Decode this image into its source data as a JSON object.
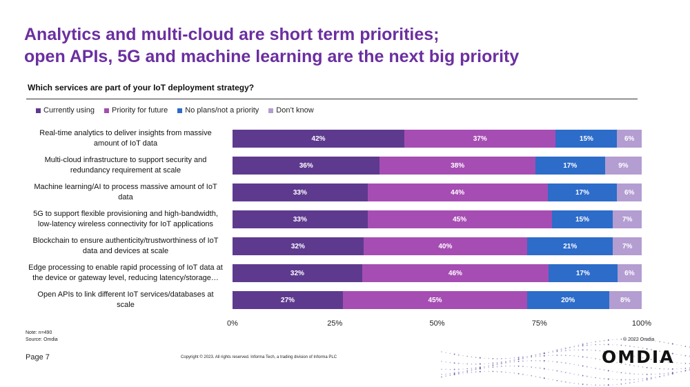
{
  "title_line1": "Analytics and multi-cloud are short term priorities;",
  "title_line2": "open APIs, 5G and machine learning are the next big priority",
  "page_number": "Page 7",
  "copyright": "Copyright © 2023. All rights reserved. Informa Tech, a trading division of Informa PLC",
  "omdia_copyright": "© 2022 Omdia",
  "logo_text": "OMDIA",
  "note": "Note: n=490",
  "source": "Source: Omdia",
  "colors": {
    "currently_using": "#5e3a8f",
    "priority_for_future": "#a64db3",
    "no_plans": "#2d6cc9",
    "dont_know": "#b39dd1",
    "title": "#6b2fa0"
  },
  "chart_data": {
    "type": "bar",
    "orientation": "horizontal",
    "stacked": true,
    "title": "Which services are part of your IoT deployment strategy?",
    "xlim": [
      0,
      100
    ],
    "x_ticks": [
      "0%",
      "25%",
      "50%",
      "75%",
      "100%"
    ],
    "legend_position": "top-left",
    "categories": [
      "Real-time analytics to deliver insights from massive amount of IoT data",
      "Multi-cloud infrastructure to support security and redundancy requirement at scale",
      "Machine learning/AI to process massive amount of IoT data",
      "5G to support flexible provisioning and high-bandwidth, low-latency wireless connectivity for IoT applications",
      "Blockchain to ensure authenticity/trustworthiness of IoT data and devices at scale",
      "Edge processing to enable rapid processing of IoT data at the device or gateway level, reducing latency/storage…",
      "Open APIs to link different IoT services/databases at scale"
    ],
    "category_lines": [
      [
        "Real-time analytics to deliver insights from massive",
        "amount of IoT data"
      ],
      [
        "Multi-cloud infrastructure to support security and",
        "redundancy requirement at scale"
      ],
      [
        "Machine learning/AI to process massive amount of IoT",
        "data"
      ],
      [
        "5G to support flexible provisioning and high-bandwidth,",
        "low-latency wireless connectivity for IoT applications"
      ],
      [
        "Blockchain to ensure authenticity/trustworthiness of IoT",
        "data and devices at scale"
      ],
      [
        "Edge processing to enable rapid processing of IoT data at",
        "the device or gateway level, reducing latency/storage…"
      ],
      [
        "Open APIs to link different IoT services/databases at",
        "scale"
      ]
    ],
    "series": [
      {
        "name": "Currently using",
        "values": [
          42,
          36,
          33,
          33,
          32,
          32,
          27
        ]
      },
      {
        "name": "Priority for future",
        "values": [
          37,
          38,
          44,
          45,
          40,
          46,
          45
        ]
      },
      {
        "name": "No plans/not a priority",
        "values": [
          15,
          17,
          17,
          15,
          21,
          17,
          20
        ]
      },
      {
        "name": "Don’t know",
        "values": [
          6,
          9,
          6,
          7,
          7,
          6,
          8
        ]
      }
    ]
  }
}
